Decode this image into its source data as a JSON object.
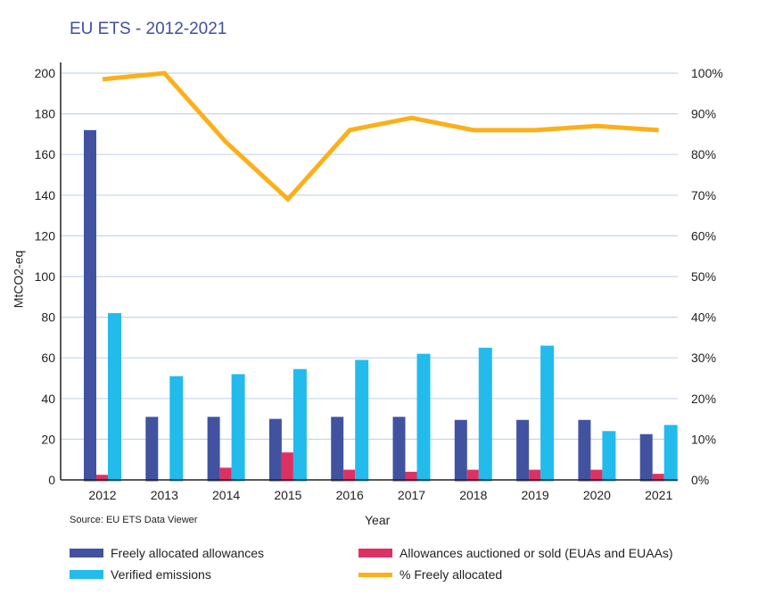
{
  "chart_data": {
    "type": "bar",
    "title": "EU ETS - 2012-2021",
    "source": "Source: EU ETS Data Viewer",
    "xlabel": "Year",
    "ylabel": "MtCO2-eq",
    "ylim": [
      0,
      200
    ],
    "y2lim": [
      0,
      100
    ],
    "yticks": [
      "0",
      "20",
      "40",
      "60",
      "80",
      "100",
      "120",
      "140",
      "160",
      "180",
      "200"
    ],
    "y2ticks": [
      "0%",
      "10%",
      "20%",
      "30%",
      "40%",
      "50%",
      "60%",
      "70%",
      "80%",
      "90%",
      "100%"
    ],
    "grid": true,
    "legend_position": "bottom",
    "categories": [
      "2012",
      "2013",
      "2014",
      "2015",
      "2016",
      "2017",
      "2018",
      "2019",
      "2020",
      "2021"
    ],
    "series": [
      {
        "name": "Freely allocated allowances",
        "type": "bar",
        "color": "#4153a0",
        "values": [
          172,
          31,
          31,
          30,
          31,
          31,
          29.5,
          29.5,
          29.5,
          22.5
        ]
      },
      {
        "name": "Allowances auctioned or sold (EUAs and EUAAs)",
        "type": "bar",
        "color": "#de3163",
        "values": [
          2.5,
          0,
          6,
          13.5,
          5,
          4,
          5,
          5,
          5,
          3
        ]
      },
      {
        "name": "Verified emissions",
        "type": "bar",
        "color": "#22bbec",
        "values": [
          82,
          51,
          52,
          54.5,
          59,
          62,
          65,
          66,
          24,
          27
        ]
      },
      {
        "name": "% Freely allocated",
        "type": "line",
        "axis": "right",
        "color": "#fbb01b",
        "values": [
          98.5,
          100,
          83,
          69,
          86,
          89,
          86,
          86,
          87,
          86
        ]
      }
    ]
  }
}
